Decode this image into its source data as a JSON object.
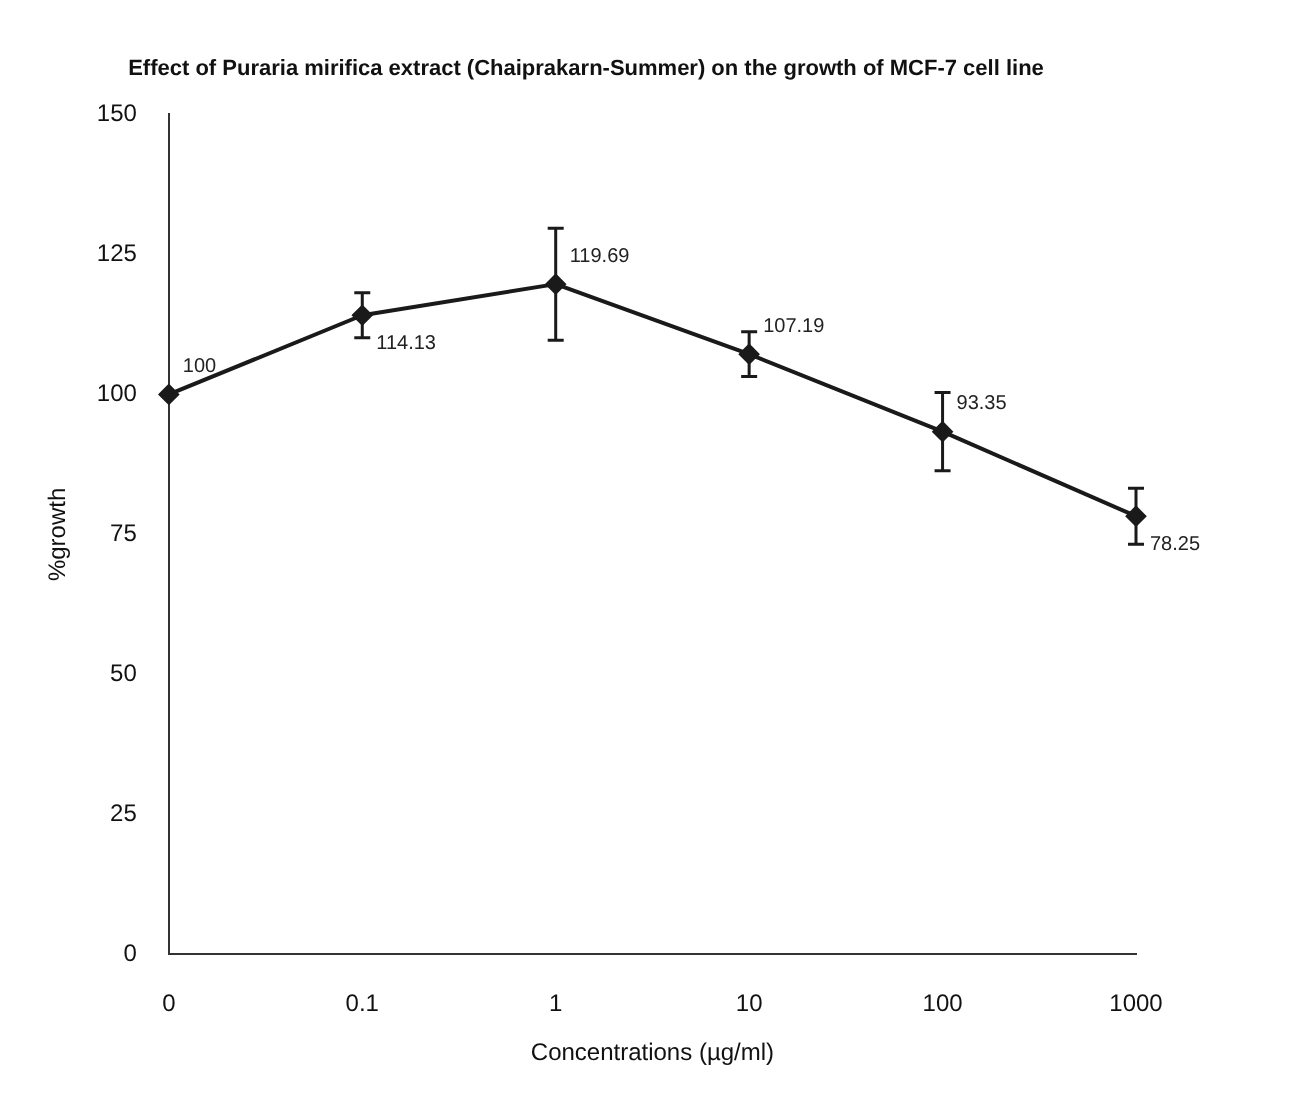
{
  "chart_data": {
    "type": "line",
    "title": "Effect of Puraria mirifica extract (Chaiprakarn-Summer) on the growth of MCF-7 cell line",
    "xlabel": "Concentrations (µg/ml)",
    "ylabel": "%growth",
    "categories": [
      "0",
      "0.1",
      "1",
      "10",
      "100",
      "1000"
    ],
    "series": [
      {
        "color": "#1a1a1a",
        "values": [
          100,
          114.13,
          119.69,
          107.19,
          93.35,
          78.25
        ],
        "errors": [
          null,
          4,
          10,
          4,
          7,
          5
        ]
      }
    ],
    "ylim": [
      0,
      150
    ],
    "yticks": [
      0,
      25,
      50,
      75,
      100,
      125,
      150
    ],
    "grid": false,
    "legend": false,
    "marker": "diamond",
    "line_style": "solid",
    "data_labels": true
  }
}
